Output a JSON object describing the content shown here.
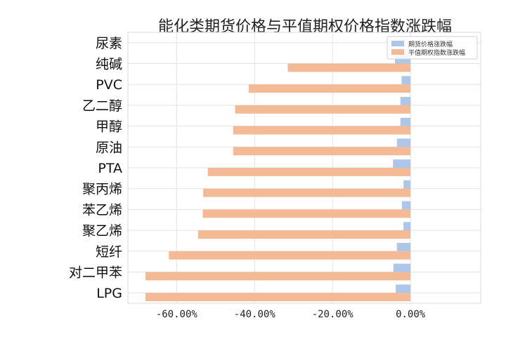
{
  "chart_data": {
    "type": "bar",
    "orientation": "horizontal",
    "title": "能化类期货价格与平值期权价格指数涨跌幅",
    "categories": [
      "尿素",
      "纯碱",
      "PVC",
      "乙二醇",
      "甲醇",
      "原油",
      "PTA",
      "聚丙烯",
      "苯乙烯",
      "聚乙烯",
      "短纤",
      "对二甲苯",
      "LPG"
    ],
    "series": [
      {
        "name": "期货价格涨跌幅",
        "color": "#aec7e8",
        "values": [
          null,
          -4.0,
          -2.3,
          -2.6,
          -2.6,
          -3.5,
          -4.5,
          -1.8,
          -2.2,
          -1.8,
          -3.5,
          -4.4,
          -3.8
        ]
      },
      {
        "name": "平值期权指数涨跌幅",
        "color": "#f4b995",
        "values": [
          null,
          -31.5,
          -41.5,
          -45.0,
          -45.5,
          -45.5,
          -52.0,
          -53.2,
          -53.3,
          -54.5,
          -62.0,
          -68.0,
          -68.0
        ]
      }
    ],
    "xlim": [
      -72.5,
      18
    ],
    "xticks": [
      -60,
      -40,
      -20,
      0
    ],
    "xtick_labels": [
      "-60.00%",
      "-40.00%",
      "-20.00%",
      "0.00%"
    ],
    "xlabel": "",
    "ylabel": "",
    "grid": true,
    "legend_position": "top-right"
  }
}
